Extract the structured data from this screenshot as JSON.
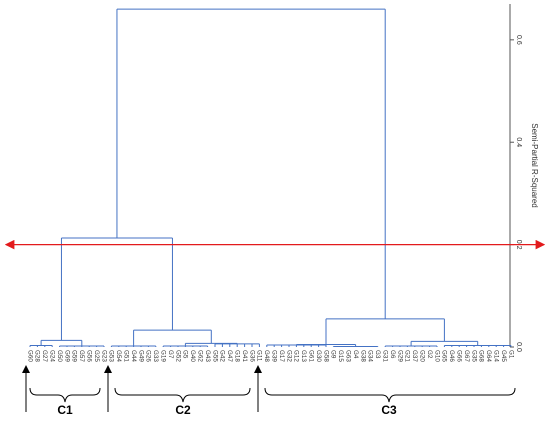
{
  "chart_data": {
    "type": "dendrogram",
    "y_axis_label": "Semi-Partial R-Squared",
    "ylim": [
      0,
      0.67
    ],
    "yticks": [
      {
        "value": 0,
        "label": "0.0"
      },
      0.2,
      0.4,
      0.6
    ],
    "color": "#4472c4",
    "threshold": 0.2,
    "threshold_color": "#e31a1c",
    "leaves": [
      "G60",
      "G28",
      "G27",
      "G24",
      "G50",
      "G69",
      "G59",
      "G57",
      "G56",
      "G25",
      "G23",
      "G53",
      "G54",
      "G51",
      "G44",
      "G49",
      "G26",
      "G33",
      "G19",
      "G7",
      "G52",
      "G5",
      "G40",
      "G62",
      "G43",
      "G55",
      "G42",
      "G47",
      "G18",
      "G41",
      "G36",
      "G11",
      "G48",
      "G39",
      "G17",
      "G32",
      "G12",
      "G13",
      "G61",
      "G30",
      "G58",
      "G9",
      "G15",
      "G63",
      "G4",
      "G38",
      "G34",
      "G3",
      "G31",
      "G6",
      "G29",
      "G21",
      "G37",
      "G20",
      "G2",
      "G10",
      "G65",
      "G46",
      "G66",
      "G67",
      "G35",
      "G68",
      "G64",
      "G14",
      "G45",
      "G1"
    ],
    "merges": [
      {
        "children": [
          0,
          1,
          2,
          3
        ],
        "height": 0.003
      },
      {
        "children": [
          4,
          5,
          6,
          7,
          8,
          9,
          10
        ],
        "height": 0.002
      },
      {
        "children": [
          66,
          67
        ],
        "height": 0.013
      },
      {
        "children": [
          11,
          12,
          13,
          14,
          15,
          16,
          17
        ],
        "height": 0.002
      },
      {
        "children": [
          18,
          19,
          20,
          21,
          22,
          23,
          24
        ],
        "height": 0.002
      },
      {
        "children": [
          25,
          26,
          27,
          28,
          29,
          30,
          31
        ],
        "height": 0.006
      },
      {
        "children": [
          70,
          71
        ],
        "height": 0.007
      },
      {
        "children": [
          69,
          72
        ],
        "height": 0.033
      },
      {
        "children": [
          68,
          73
        ],
        "height": 0.213
      },
      {
        "children": [
          32,
          33,
          34,
          35,
          36,
          37,
          38,
          39,
          40
        ],
        "height": 0.004
      },
      {
        "children": [
          41,
          42,
          43,
          44,
          45,
          46,
          47
        ],
        "height": 0.001
      },
      {
        "children": [
          75,
          76
        ],
        "height": 0.005
      },
      {
        "children": [
          48,
          49,
          50,
          51,
          52,
          53,
          54,
          55
        ],
        "height": 0.002
      },
      {
        "children": [
          56,
          57,
          58,
          59,
          60,
          61,
          62,
          63,
          64,
          65
        ],
        "height": 0.003
      },
      {
        "children": [
          78,
          79
        ],
        "height": 0.011
      },
      {
        "children": [
          77,
          80
        ],
        "height": 0.055
      },
      {
        "children": [
          74,
          81
        ],
        "height": 0.66
      }
    ],
    "groups": [
      "C1",
      "C2",
      "C3"
    ]
  }
}
